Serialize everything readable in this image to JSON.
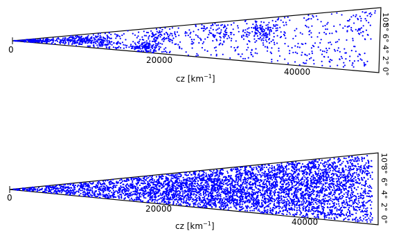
{
  "chart_data": [
    {
      "type": "scatter",
      "panel": "top",
      "xlabel": "cz [km$^{-1}$]",
      "xlabel_text": "cz [km",
      "xlabel_sup": "−1",
      "xlabel_close": "]",
      "x_ticks": [
        0,
        20000,
        40000
      ],
      "x_tick_labels": [
        "0",
        "20000",
        "40000"
      ],
      "xlim": [
        0,
        51000
      ],
      "angle_ticks": [
        0,
        2,
        4,
        6,
        8,
        10
      ],
      "angle_tick_labels": [
        "0°",
        "2°",
        "4°",
        "6°",
        "8°",
        "10°"
      ],
      "angle_lim": [
        0,
        10
      ],
      "marker_color": "#0000ff",
      "series": [
        {
          "density": "sparse",
          "n_points": 1400,
          "clusters": [
            {
              "r": 3000,
              "theta": 5.0,
              "spread_r": 1800,
              "spread_t": 2.5,
              "weight": 4
            },
            {
              "r": 9000,
              "theta": 5.5,
              "spread_r": 2000,
              "spread_t": 2.0,
              "weight": 5
            },
            {
              "r": 13000,
              "theta": 4.0,
              "spread_r": 1500,
              "spread_t": 2.5,
              "weight": 3
            },
            {
              "r": 18500,
              "theta": 2.0,
              "spread_r": 1200,
              "spread_t": 1.2,
              "weight": 3
            },
            {
              "r": 20500,
              "theta": 6.5,
              "spread_r": 1500,
              "spread_t": 1.5,
              "weight": 2
            },
            {
              "r": 28000,
              "theta": 7.0,
              "spread_r": 1800,
              "spread_t": 2.0,
              "weight": 2
            },
            {
              "r": 34500,
              "theta": 6.8,
              "spread_r": 1200,
              "spread_t": 1.0,
              "weight": 3
            },
            {
              "r": 42000,
              "theta": 5.5,
              "spread_r": 3500,
              "spread_t": 3.5,
              "weight": 2
            },
            {
              "r": 48000,
              "theta": 8.5,
              "spread_r": 1500,
              "spread_t": 1.5,
              "weight": 1
            }
          ]
        }
      ]
    },
    {
      "type": "scatter",
      "panel": "bottom",
      "xlabel": "cz [km$^{-1}$]",
      "xlabel_text": "cz [km",
      "xlabel_sup": "−1",
      "xlabel_close": "]",
      "x_ticks": [
        0,
        20000,
        40000
      ],
      "x_tick_labels": [
        "0",
        "20000",
        "40000"
      ],
      "xlim": [
        0,
        51000
      ],
      "angle_ticks": [
        0,
        2,
        4,
        6,
        8,
        10
      ],
      "angle_tick_labels": [
        "0°",
        "2°",
        "4°",
        "6°",
        "8°",
        "10°"
      ],
      "angle_lim": [
        0,
        10
      ],
      "marker_color": "#0000ff",
      "series": [
        {
          "density": "dense",
          "n_points": 16000,
          "clusters": [
            {
              "r": 10000,
              "theta": 5.0,
              "spread_r": 6000,
              "spread_t": 4.0,
              "weight": 3
            },
            {
              "r": 22000,
              "theta": 5.0,
              "spread_r": 5000,
              "spread_t": 4.0,
              "weight": 5
            },
            {
              "r": 30000,
              "theta": 4.0,
              "spread_r": 4000,
              "spread_t": 4.0,
              "weight": 5
            },
            {
              "r": 38000,
              "theta": 6.0,
              "spread_r": 4000,
              "spread_t": 4.0,
              "weight": 6
            },
            {
              "r": 45000,
              "theta": 5.0,
              "spread_r": 4000,
              "spread_t": 4.5,
              "weight": 6
            }
          ]
        }
      ]
    }
  ]
}
